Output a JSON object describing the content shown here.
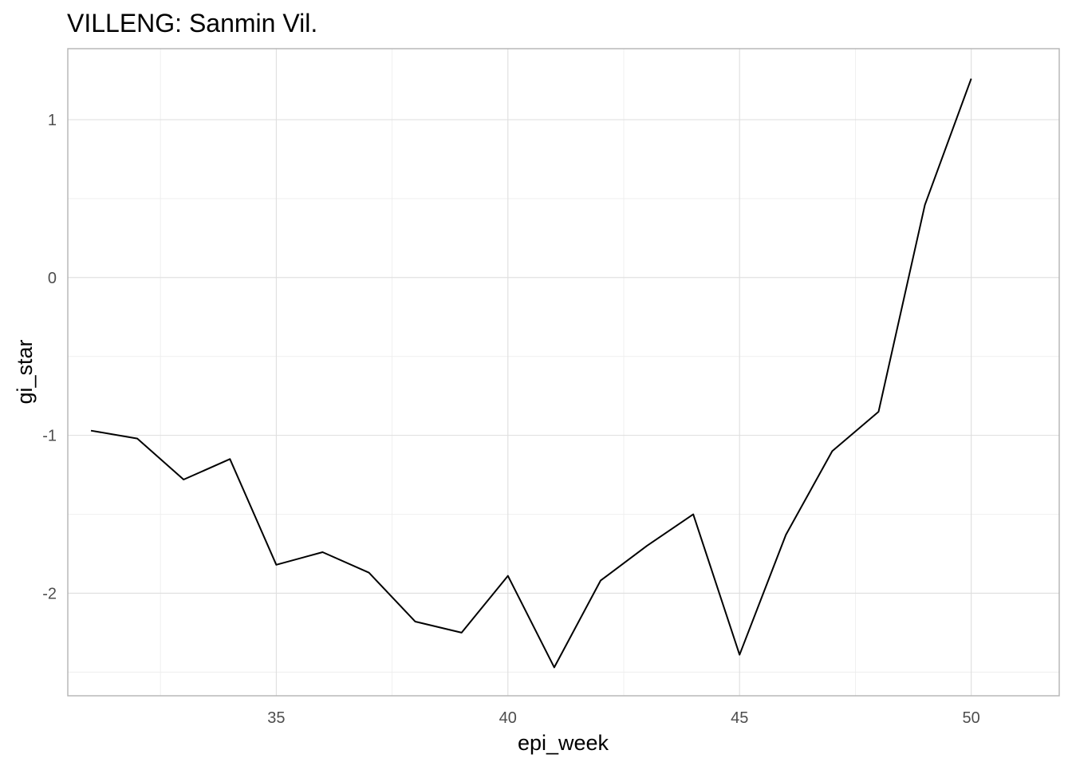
{
  "chart_data": {
    "type": "line",
    "title": "VILLENG: Sanmin Vil.",
    "xlabel": "epi_week",
    "ylabel": "gi_star",
    "xlim": [
      30.5,
      51.9
    ],
    "ylim": [
      -2.65,
      1.45
    ],
    "x_ticks": [
      35,
      40,
      45,
      50
    ],
    "y_ticks": [
      -2,
      -1,
      0,
      1
    ],
    "x_tick_labels": [
      "35",
      "40",
      "45",
      "50"
    ],
    "y_tick_labels": [
      "-2",
      "-1",
      "0",
      "1"
    ],
    "grid": true,
    "legend": "none",
    "line_color": "#000000",
    "x": [
      31,
      32,
      33,
      34,
      35,
      36,
      37,
      38,
      39,
      40,
      41,
      42,
      43,
      44,
      45,
      46,
      47,
      48,
      49,
      50
    ],
    "series": [
      {
        "values": [
          -0.97,
          -1.02,
          -1.28,
          -1.15,
          -1.82,
          -1.74,
          -1.87,
          -2.18,
          -2.25,
          -1.89,
          -2.47,
          -1.92,
          -1.7,
          -1.5,
          -2.39,
          -1.63,
          -1.1,
          -0.85,
          0.46,
          1.26
        ]
      }
    ]
  }
}
